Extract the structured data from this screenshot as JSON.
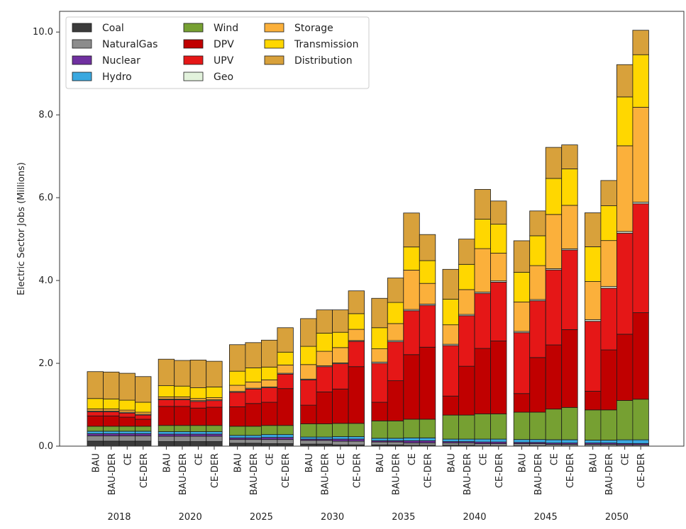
{
  "chart_data": {
    "type": "bar",
    "stacked": true,
    "ylabel": "Electric Sector Jobs (Millions)",
    "ylim": [
      0,
      10.5
    ],
    "yticks": [
      "0.0",
      "2.0",
      "4.0",
      "6.0",
      "8.0",
      "10.0"
    ],
    "scenarios": [
      "BAU",
      "BAU-DER",
      "CE",
      "CE-DER"
    ],
    "years": [
      "2018",
      "2020",
      "2025",
      "2030",
      "2035",
      "2040",
      "2045",
      "2050"
    ],
    "legend_position": "top-left",
    "legend_columns": [
      [
        "Coal",
        "NaturalGas",
        "Nuclear",
        "Hydro"
      ],
      [
        "Wind",
        "DPV",
        "UPV",
        "Geo"
      ],
      [
        "Storage",
        "Transmission",
        "Distribution"
      ]
    ],
    "series": [
      {
        "name": "Coal",
        "color": "#3b3b3b",
        "values": [
          [
            0.12,
            0.12,
            0.12,
            0.12
          ],
          [
            0.11,
            0.11,
            0.11,
            0.11
          ],
          [
            0.07,
            0.07,
            0.06,
            0.06
          ],
          [
            0.05,
            0.05,
            0.03,
            0.03
          ],
          [
            0.03,
            0.03,
            0.02,
            0.02
          ],
          [
            0.02,
            0.02,
            0.01,
            0.01
          ],
          [
            0.01,
            0.01,
            0.005,
            0.005
          ],
          [
            0.005,
            0.005,
            0.003,
            0.003
          ]
        ]
      },
      {
        "name": "NaturalGas",
        "color": "#8c8c8c",
        "values": [
          [
            0.13,
            0.13,
            0.13,
            0.13
          ],
          [
            0.13,
            0.13,
            0.13,
            0.13
          ],
          [
            0.09,
            0.09,
            0.1,
            0.1
          ],
          [
            0.09,
            0.09,
            0.09,
            0.09
          ],
          [
            0.07,
            0.07,
            0.06,
            0.06
          ],
          [
            0.06,
            0.06,
            0.05,
            0.05
          ],
          [
            0.05,
            0.05,
            0.04,
            0.04
          ],
          [
            0.04,
            0.04,
            0.03,
            0.03
          ]
        ]
      },
      {
        "name": "Nuclear",
        "color": "#7030a0",
        "values": [
          [
            0.05,
            0.05,
            0.05,
            0.05
          ],
          [
            0.05,
            0.05,
            0.05,
            0.05
          ],
          [
            0.04,
            0.04,
            0.05,
            0.05
          ],
          [
            0.03,
            0.03,
            0.05,
            0.05
          ],
          [
            0.03,
            0.03,
            0.05,
            0.05
          ],
          [
            0.03,
            0.03,
            0.04,
            0.04
          ],
          [
            0.03,
            0.03,
            0.03,
            0.03
          ],
          [
            0.03,
            0.03,
            0.03,
            0.03
          ]
        ]
      },
      {
        "name": "Hydro",
        "color": "#3aa8e0",
        "values": [
          [
            0.06,
            0.06,
            0.06,
            0.06
          ],
          [
            0.06,
            0.06,
            0.06,
            0.06
          ],
          [
            0.06,
            0.06,
            0.07,
            0.07
          ],
          [
            0.05,
            0.05,
            0.06,
            0.06
          ],
          [
            0.06,
            0.06,
            0.07,
            0.07
          ],
          [
            0.06,
            0.06,
            0.07,
            0.07
          ],
          [
            0.07,
            0.07,
            0.08,
            0.08
          ],
          [
            0.07,
            0.07,
            0.09,
            0.09
          ]
        ]
      },
      {
        "name": "Wind",
        "color": "#76a032",
        "values": [
          [
            0.12,
            0.12,
            0.12,
            0.12
          ],
          [
            0.15,
            0.15,
            0.15,
            0.15
          ],
          [
            0.22,
            0.22,
            0.22,
            0.22
          ],
          [
            0.32,
            0.32,
            0.32,
            0.32
          ],
          [
            0.42,
            0.42,
            0.45,
            0.45
          ],
          [
            0.58,
            0.58,
            0.61,
            0.61
          ],
          [
            0.66,
            0.66,
            0.74,
            0.78
          ],
          [
            0.73,
            0.73,
            0.95,
            0.98
          ]
        ]
      },
      {
        "name": "DPV",
        "color": "#c00000",
        "values": [
          [
            0.25,
            0.25,
            0.22,
            0.17
          ],
          [
            0.46,
            0.46,
            0.42,
            0.44
          ],
          [
            0.47,
            0.55,
            0.56,
            0.89
          ],
          [
            0.45,
            0.77,
            0.83,
            1.37
          ],
          [
            0.45,
            0.97,
            1.56,
            1.74
          ],
          [
            0.46,
            1.18,
            1.58,
            1.76
          ],
          [
            0.45,
            1.32,
            1.55,
            1.88
          ],
          [
            0.45,
            1.45,
            1.6,
            2.09
          ]
        ]
      },
      {
        "name": "UPV",
        "color": "#e51717",
        "values": [
          [
            0.1,
            0.1,
            0.1,
            0.1
          ],
          [
            0.16,
            0.16,
            0.16,
            0.16
          ],
          [
            0.35,
            0.35,
            0.35,
            0.35
          ],
          [
            0.61,
            0.61,
            0.61,
            0.61
          ],
          [
            0.94,
            0.94,
            1.06,
            1.01
          ],
          [
            1.22,
            1.22,
            1.33,
            1.42
          ],
          [
            1.47,
            1.37,
            1.81,
            1.92
          ],
          [
            1.69,
            1.49,
            2.44,
            2.63
          ]
        ]
      },
      {
        "name": "Geo",
        "color": "#e2f2dc",
        "values": [
          [
            0.02,
            0.02,
            0.02,
            0.02
          ],
          [
            0.02,
            0.02,
            0.02,
            0.02
          ],
          [
            0.02,
            0.02,
            0.02,
            0.02
          ],
          [
            0.02,
            0.02,
            0.02,
            0.02
          ],
          [
            0.03,
            0.03,
            0.03,
            0.03
          ],
          [
            0.03,
            0.03,
            0.03,
            0.03
          ],
          [
            0.03,
            0.03,
            0.03,
            0.03
          ],
          [
            0.04,
            0.04,
            0.04,
            0.04
          ]
        ]
      },
      {
        "name": "Storage",
        "color": "#fbb03b",
        "values": [
          [
            0.05,
            0.05,
            0.05,
            0.05
          ],
          [
            0.05,
            0.05,
            0.05,
            0.05
          ],
          [
            0.15,
            0.15,
            0.17,
            0.2
          ],
          [
            0.35,
            0.35,
            0.37,
            0.27
          ],
          [
            0.32,
            0.41,
            0.95,
            0.5
          ],
          [
            0.47,
            0.6,
            1.05,
            0.67
          ],
          [
            0.71,
            0.82,
            1.31,
            1.05
          ],
          [
            0.92,
            1.11,
            2.07,
            2.29
          ]
        ]
      },
      {
        "name": "Transmission",
        "color": "#ffd700",
        "values": [
          [
            0.25,
            0.24,
            0.24,
            0.24
          ],
          [
            0.27,
            0.26,
            0.26,
            0.26
          ],
          [
            0.34,
            0.34,
            0.31,
            0.31
          ],
          [
            0.44,
            0.44,
            0.37,
            0.38
          ],
          [
            0.51,
            0.51,
            0.56,
            0.55
          ],
          [
            0.62,
            0.61,
            0.71,
            0.7
          ],
          [
            0.72,
            0.72,
            0.87,
            0.88
          ],
          [
            0.84,
            0.84,
            1.18,
            1.27
          ]
        ]
      },
      {
        "name": "Distribution",
        "color": "#d8a13b",
        "values": [
          [
            0.65,
            0.65,
            0.65,
            0.62
          ],
          [
            0.64,
            0.62,
            0.67,
            0.62
          ],
          [
            0.64,
            0.61,
            0.65,
            0.59
          ],
          [
            0.67,
            0.56,
            0.54,
            0.55
          ],
          [
            0.71,
            0.59,
            0.82,
            0.63
          ],
          [
            0.72,
            0.61,
            0.72,
            0.56
          ],
          [
            0.76,
            0.6,
            0.75,
            0.58
          ],
          [
            0.82,
            0.61,
            0.78,
            0.59
          ]
        ]
      }
    ]
  }
}
